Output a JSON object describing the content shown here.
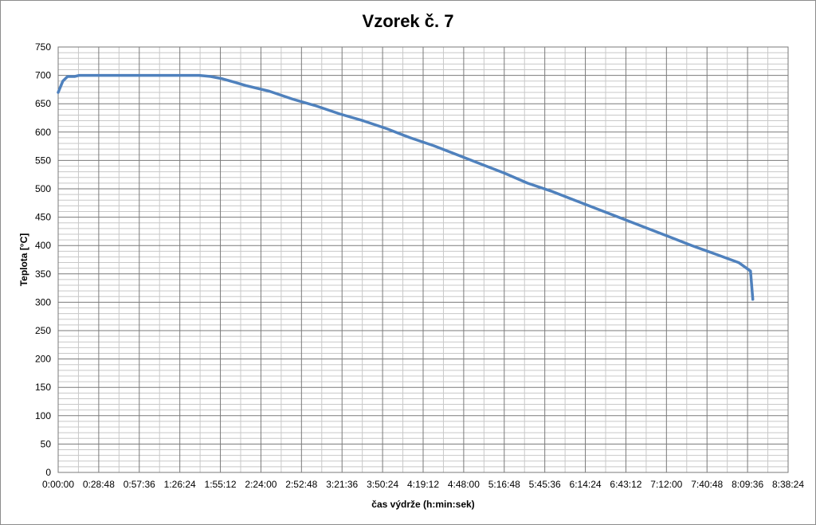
{
  "chart_data": {
    "type": "line",
    "title": "Vzorek č. 7",
    "xlabel": "čas výdrže (h:min:sek)",
    "ylabel": "Teplota [°C]",
    "x_unit": "seconds",
    "xlim_seconds": [
      0,
      31104
    ],
    "ylim": [
      0,
      750
    ],
    "y_major_step": 50,
    "y_minor_step": 10,
    "x_major_step_seconds": 1728,
    "x_minor_step_seconds": 864,
    "grid": true,
    "legend": "none",
    "x_tick_labels": [
      "0:00:00",
      "0:28:48",
      "0:57:36",
      "1:26:24",
      "1:55:12",
      "2:24:00",
      "2:52:48",
      "3:21:36",
      "3:50:24",
      "4:19:12",
      "4:48:00",
      "5:16:48",
      "5:45:36",
      "6:14:24",
      "6:43:12",
      "7:12:00",
      "7:40:48",
      "8:09:36",
      "8:38:24"
    ],
    "y_tick_labels": [
      "0",
      "50",
      "100",
      "150",
      "200",
      "250",
      "300",
      "350",
      "400",
      "450",
      "500",
      "550",
      "600",
      "650",
      "700",
      "750"
    ],
    "series": [
      {
        "color": "#4f81bd",
        "x_seconds": [
          0,
          200,
          400,
          700,
          900,
          1200,
          1500,
          2000,
          3000,
          4000,
          5000,
          6000,
          6500,
          7000,
          7500,
          8000,
          9000,
          10000,
          11000,
          12000,
          13000,
          14000,
          15000,
          16000,
          17000,
          18000,
          19000,
          20000,
          21000,
          22000,
          23000,
          24000,
          25000,
          26000,
          27000,
          28000,
          29000,
          29400,
          29500,
          29600
        ],
        "y": [
          670,
          690,
          698,
          698,
          700,
          700,
          700,
          700,
          700,
          700,
          700,
          700,
          698,
          694,
          688,
          682,
          672,
          658,
          646,
          632,
          620,
          606,
          590,
          576,
          560,
          544,
          528,
          510,
          496,
          480,
          464,
          448,
          432,
          416,
          400,
          385,
          370,
          358,
          355,
          305
        ]
      }
    ]
  }
}
